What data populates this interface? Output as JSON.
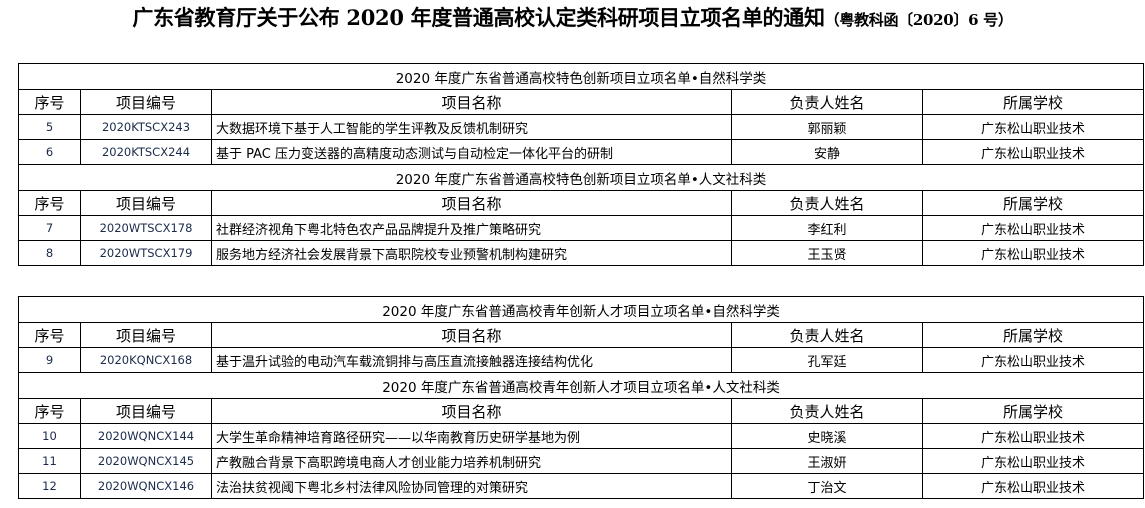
{
  "title": {
    "main": "广东省教育厅关于公布 2020 年度普通高校认定类科研项目立项名单的通知",
    "sub": "（粤教科函〔2020〕6 号）"
  },
  "headers": [
    "序号",
    "项目编号",
    "项目名称",
    "负责人姓名",
    "所属学校"
  ],
  "tables": [
    {
      "sections": [
        {
          "caption": "2020 年度广东省普通高校特色创新项目立项名单•自然科学类",
          "rows": [
            [
              "5",
              "2020KTSCX243",
              "大数据环境下基于人工智能的学生评教及反馈机制研究",
              "郭丽颖",
              "广东松山职业技术"
            ],
            [
              "6",
              "2020KTSCX244",
              "基于 PAC 压力变送器的高精度动态测试与自动检定一体化平台的研制",
              "安静",
              "广东松山职业技术"
            ]
          ]
        },
        {
          "caption": "2020 年度广东省普通高校特色创新项目立项名单•人文社科类",
          "rows": [
            [
              "7",
              "2020WTSCX178",
              "社群经济视角下粤北特色农产品品牌提升及推广策略研究",
              "李红利",
              "广东松山职业技术"
            ],
            [
              "8",
              "2020WTSCX179",
              "服务地方经济社会发展背景下高职院校专业预警机制构建研究",
              "王玉贤",
              "广东松山职业技术"
            ]
          ]
        }
      ]
    },
    {
      "sections": [
        {
          "caption": "2020 年度广东省普通高校青年创新人才项目立项名单•自然科学类",
          "rows": [
            [
              "9",
              "2020KQNCX168",
              "基于温升试验的电动汽车载流铜排与高压直流接触器连接结构优化",
              "孔军廷",
              "广东松山职业技术"
            ]
          ]
        },
        {
          "caption": "2020 年度广东省普通高校青年创新人才项目立项名单•人文社科类",
          "rows": [
            [
              "10",
              "2020WQNCX144",
              "大学生革命精神培育路径研究——以华南教育历史研学基地为例",
              "史晓溪",
              "广东松山职业技术"
            ],
            [
              "11",
              "2020WQNCX145",
              "产教融合背景下高职跨境电商人才创业能力培养机制研究",
              "王淑妍",
              "广东松山职业技术"
            ],
            [
              "12",
              "2020WQNCX146",
              "法治扶贫视阈下粤北乡村法律风险协同管理的对策研究",
              "丁治文",
              "广东松山职业技术"
            ]
          ]
        }
      ]
    }
  ]
}
